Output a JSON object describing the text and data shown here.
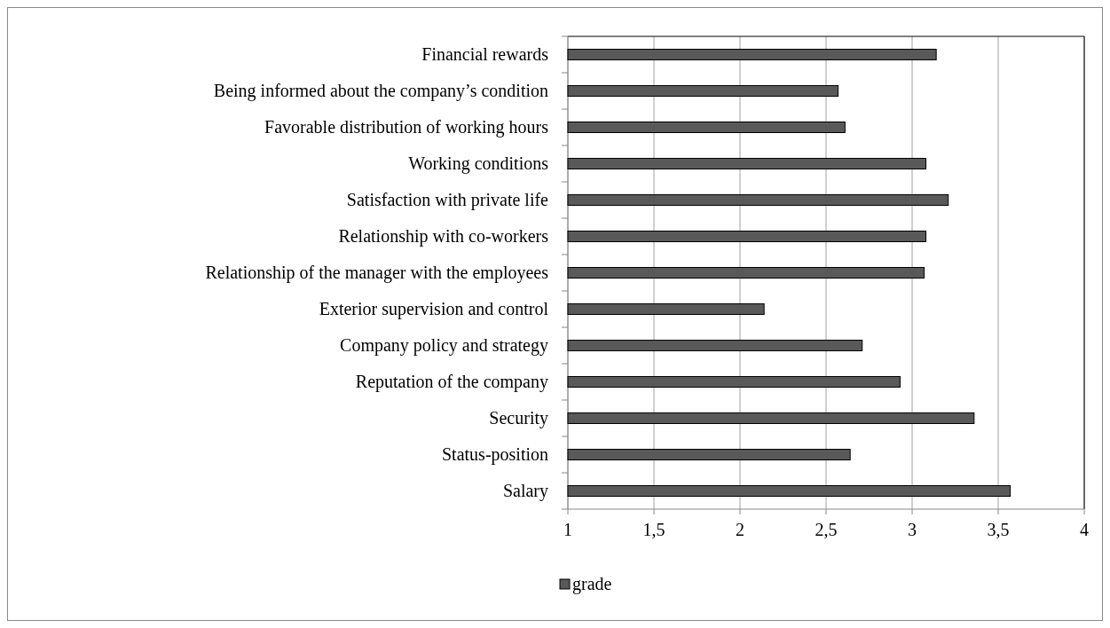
{
  "chart_data": {
    "type": "bar",
    "orientation": "horizontal",
    "categories": [
      "Financial rewards",
      "Being informed about the company’s condition",
      "Favorable distribution of working hours",
      "Working conditions",
      "Satisfaction with private life",
      "Relationship with co-workers",
      "Relationship of the manager with the employees",
      "Exterior supervision and control",
      "Company policy and strategy",
      "Reputation of the company",
      "Security",
      "Status-position",
      "Salary"
    ],
    "series": [
      {
        "name": "grade",
        "color": "#595959",
        "values": [
          3.14,
          2.57,
          2.61,
          3.08,
          3.21,
          3.08,
          3.07,
          2.14,
          2.71,
          2.93,
          3.36,
          2.64,
          3.57
        ]
      }
    ],
    "xlim": [
      1,
      4
    ],
    "xticks": [
      1,
      {
        "value": 1.5,
        "label": "1,5"
      },
      2,
      {
        "value": 2.5,
        "label": "2,5"
      },
      3,
      {
        "value": 3.5,
        "label": "3,5"
      },
      4
    ],
    "grid": "x",
    "legend": "bottom"
  }
}
